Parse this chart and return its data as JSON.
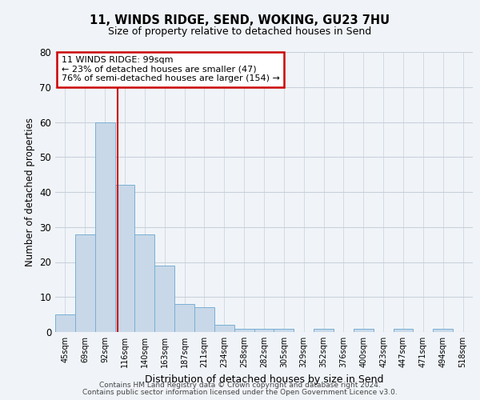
{
  "title1": "11, WINDS RIDGE, SEND, WOKING, GU23 7HU",
  "title2": "Size of property relative to detached houses in Send",
  "xlabel": "Distribution of detached houses by size in Send",
  "ylabel": "Number of detached properties",
  "categories": [
    "45sqm",
    "69sqm",
    "92sqm",
    "116sqm",
    "140sqm",
    "163sqm",
    "187sqm",
    "211sqm",
    "234sqm",
    "258sqm",
    "282sqm",
    "305sqm",
    "329sqm",
    "352sqm",
    "376sqm",
    "400sqm",
    "423sqm",
    "447sqm",
    "471sqm",
    "494sqm",
    "518sqm"
  ],
  "values": [
    5,
    28,
    60,
    42,
    28,
    19,
    8,
    7,
    2,
    1,
    1,
    1,
    0,
    1,
    0,
    1,
    0,
    1,
    0,
    1,
    0
  ],
  "bar_color": "#c8d8e8",
  "bar_edge_color": "#7aafd4",
  "background_color": "#f0f4f8",
  "grid_color": "#c8d0dc",
  "red_line_x": 2.62,
  "annotation_line1": "11 WINDS RIDGE: 99sqm",
  "annotation_line2": "← 23% of detached houses are smaller (47)",
  "annotation_line3": "76% of semi-detached houses are larger (154) →",
  "annotation_box_color": "#cc0000",
  "ylim": [
    0,
    80
  ],
  "yticks": [
    0,
    10,
    20,
    30,
    40,
    50,
    60,
    70,
    80
  ],
  "footer1": "Contains HM Land Registry data © Crown copyright and database right 2024.",
  "footer2": "Contains public sector information licensed under the Open Government Licence v3.0."
}
